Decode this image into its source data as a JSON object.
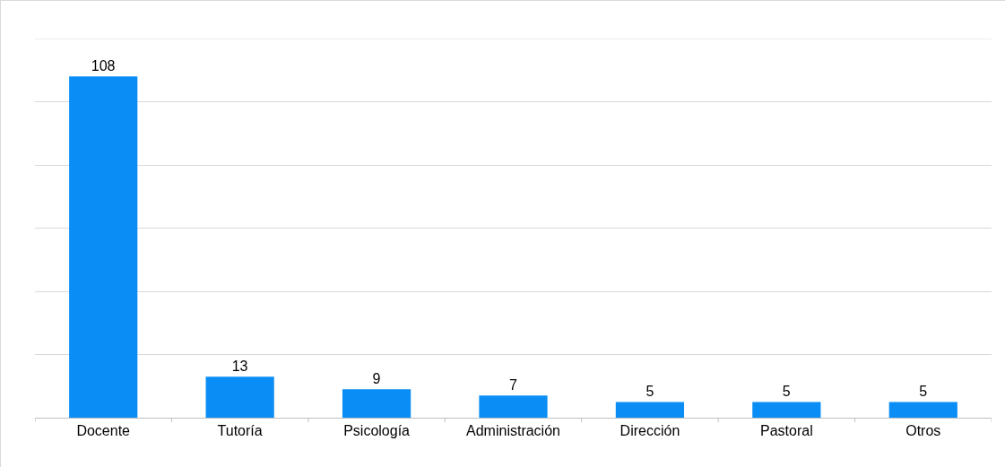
{
  "chart_data": {
    "type": "bar",
    "categories": [
      "Docente",
      "Tutoría",
      "Psicología",
      "Administración",
      "Dirección",
      "Pastoral",
      "Otros"
    ],
    "values": [
      108,
      13,
      9,
      7,
      5,
      5,
      5
    ],
    "color": "#0a8ef5",
    "ylim": [
      0,
      120
    ],
    "yticks": [
      {
        "value": 0,
        "label": null
      },
      {
        "value": 20,
        "label": null
      },
      {
        "value": 40,
        "label": null
      },
      {
        "value": 60,
        "label": null
      },
      {
        "value": 80,
        "label": null
      },
      {
        "value": 100,
        "label": null
      },
      {
        "value": 120,
        "label": null
      }
    ],
    "grid": "y",
    "data_labels": true,
    "tick_labels": "x",
    "legend": false
  }
}
